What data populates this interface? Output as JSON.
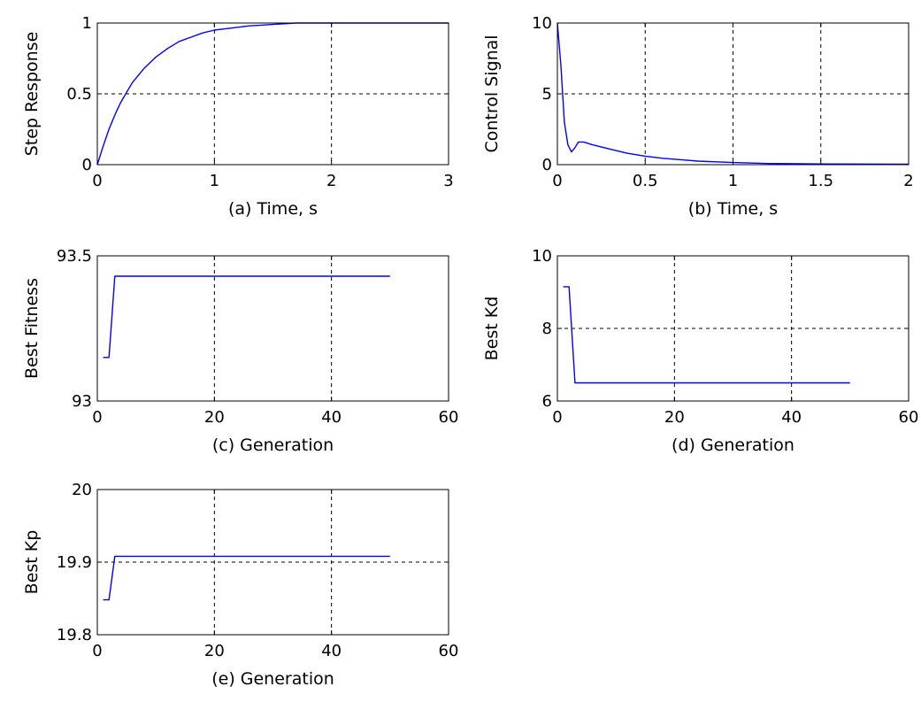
{
  "chart_data": [
    {
      "type": "line",
      "id": "a",
      "xlabel": "(a) Time, s",
      "ylabel": "Step Response",
      "xlim": [
        0,
        3
      ],
      "ylim": [
        0,
        1
      ],
      "xticks": [
        0,
        1,
        2,
        3
      ],
      "yticks": [
        0,
        0.5,
        1
      ],
      "xtick_labels": [
        "0",
        "1",
        "2",
        "3"
      ],
      "ytick_labels": [
        "0",
        "0.5",
        "1"
      ],
      "grid": true,
      "series": [
        {
          "x": [
            0,
            0.05,
            0.1,
            0.15,
            0.2,
            0.25,
            0.3,
            0.4,
            0.5,
            0.6,
            0.7,
            0.8,
            0.9,
            1.0,
            1.1,
            1.2,
            1.3,
            1.4,
            1.5,
            1.6,
            1.7,
            2.0,
            2.5,
            3.0
          ],
          "y": [
            0,
            0.13,
            0.25,
            0.35,
            0.44,
            0.51,
            0.58,
            0.68,
            0.76,
            0.82,
            0.87,
            0.9,
            0.93,
            0.95,
            0.96,
            0.97,
            0.98,
            0.985,
            0.99,
            0.995,
            1.0,
            1.0,
            1.0,
            1.0
          ]
        }
      ]
    },
    {
      "type": "line",
      "id": "b",
      "xlabel": "(b) Time, s",
      "ylabel": "Control Signal",
      "xlim": [
        0,
        2
      ],
      "ylim": [
        0,
        10
      ],
      "xticks": [
        0,
        0.5,
        1,
        1.5,
        2
      ],
      "yticks": [
        0,
        5,
        10
      ],
      "xtick_labels": [
        "0",
        "0.5",
        "1",
        "1.5",
        "2"
      ],
      "ytick_labels": [
        "0",
        "5",
        "10"
      ],
      "grid": true,
      "series": [
        {
          "x": [
            0,
            0.02,
            0.04,
            0.06,
            0.08,
            0.1,
            0.12,
            0.15,
            0.2,
            0.3,
            0.4,
            0.5,
            0.6,
            0.8,
            1.0,
            1.2,
            1.5,
            2.0
          ],
          "y": [
            10,
            7,
            3,
            1.4,
            0.9,
            1.2,
            1.6,
            1.6,
            1.4,
            1.1,
            0.8,
            0.6,
            0.45,
            0.25,
            0.15,
            0.08,
            0.05,
            0.03
          ]
        }
      ]
    },
    {
      "type": "line",
      "id": "c",
      "xlabel": "(c) Generation",
      "ylabel": "Best Fitness",
      "xlim": [
        0,
        60
      ],
      "ylim": [
        93,
        93.5
      ],
      "xticks": [
        0,
        20,
        40,
        60
      ],
      "yticks": [
        93,
        93.5
      ],
      "xtick_labels": [
        "0",
        "20",
        "40",
        "60"
      ],
      "ytick_labels": [
        "93",
        "93.5"
      ],
      "grid": true,
      "series": [
        {
          "x": [
            1,
            2,
            3,
            50
          ],
          "y": [
            93.15,
            93.15,
            93.43,
            93.43
          ]
        }
      ]
    },
    {
      "type": "line",
      "id": "d",
      "xlabel": "(d) Generation",
      "ylabel": "Best Kd",
      "xlim": [
        0,
        60
      ],
      "ylim": [
        6,
        10
      ],
      "xticks": [
        0,
        20,
        40,
        60
      ],
      "yticks": [
        6,
        8,
        10
      ],
      "xtick_labels": [
        "0",
        "20",
        "40",
        "60"
      ],
      "ytick_labels": [
        "6",
        "8",
        "10"
      ],
      "grid": true,
      "series": [
        {
          "x": [
            1,
            2,
            3,
            50
          ],
          "y": [
            9.15,
            9.15,
            6.5,
            6.5
          ]
        }
      ]
    },
    {
      "type": "line",
      "id": "e",
      "xlabel": "(e) Generation",
      "ylabel": "Best Kp",
      "xlim": [
        0,
        60
      ],
      "ylim": [
        19.8,
        20
      ],
      "xticks": [
        0,
        20,
        40,
        60
      ],
      "yticks": [
        19.8,
        19.9,
        20
      ],
      "xtick_labels": [
        "0",
        "20",
        "40",
        "60"
      ],
      "ytick_labels": [
        "19.8",
        "19.9",
        "20"
      ],
      "grid": true,
      "series": [
        {
          "x": [
            1,
            2,
            3,
            50
          ],
          "y": [
            19.848,
            19.848,
            19.908,
            19.908
          ]
        }
      ]
    }
  ],
  "colors": {
    "line": "#0000ff",
    "axes": "#000000",
    "grid": "#000000",
    "background": "#ffffff"
  }
}
